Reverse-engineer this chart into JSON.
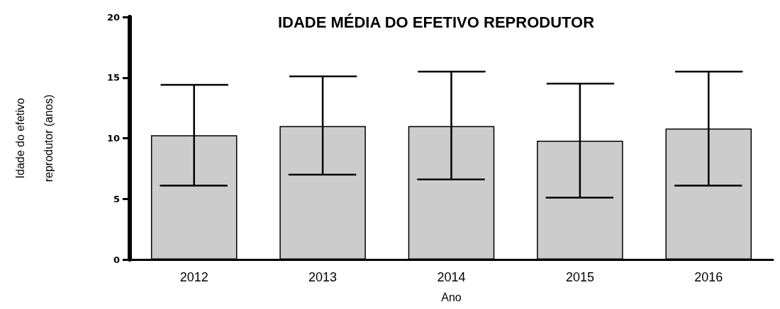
{
  "chart_data": {
    "type": "bar",
    "title": "IDADE MÉDIA DO EFETIVO REPRODUTOR",
    "xlabel": "Ano",
    "ylabel": "Idade do efetivo\nreprodutor (anos)",
    "categories": [
      "2012",
      "2013",
      "2014",
      "2015",
      "2016"
    ],
    "values": [
      10.25,
      11.0,
      11.0,
      9.8,
      10.8
    ],
    "errors": [
      [
        6.1,
        14.4
      ],
      [
        7.0,
        15.1
      ],
      [
        6.6,
        15.5
      ],
      [
        5.1,
        14.5
      ],
      [
        6.1,
        15.5
      ]
    ],
    "color": "#cccccc",
    "ylim": [
      0,
      20
    ],
    "yticks": [
      0,
      5,
      10,
      15,
      20
    ],
    "grid": false
  }
}
